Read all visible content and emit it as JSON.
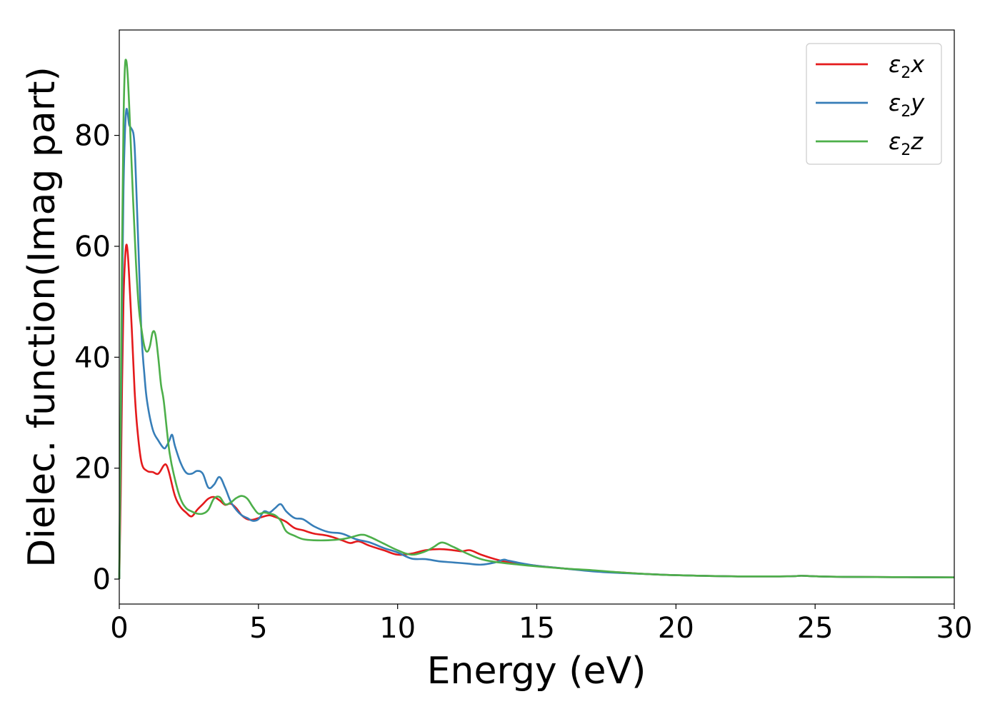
{
  "chart_data": {
    "type": "line",
    "xlabel": "Energy (eV)",
    "ylabel": "Dielec. function(Imag part)",
    "xlim": [
      0,
      30
    ],
    "ylim": [
      -4.5,
      99
    ],
    "xticks": [
      0,
      5,
      10,
      15,
      20,
      25,
      30
    ],
    "yticks": [
      0,
      20,
      40,
      60,
      80
    ],
    "grid": false,
    "legend_position": "top-right",
    "series": [
      {
        "name": "ε2x",
        "legend": {
          "base": "ε",
          "sub": "2",
          "var": "x"
        },
        "color": "#e41a1c",
        "x": [
          0,
          0.05,
          0.1,
          0.15,
          0.2,
          0.25,
          0.3,
          0.35,
          0.45,
          0.55,
          0.65,
          0.8,
          1.0,
          1.2,
          1.4,
          1.6,
          1.7,
          1.8,
          2.0,
          2.2,
          2.4,
          2.6,
          2.8,
          3.0,
          3.2,
          3.4,
          3.6,
          3.8,
          4.0,
          4.2,
          4.4,
          4.6,
          4.8,
          5.0,
          5.2,
          5.4,
          5.6,
          5.8,
          6.0,
          6.3,
          6.6,
          7.0,
          7.5,
          8.0,
          8.3,
          8.6,
          9.0,
          9.5,
          10.0,
          10.5,
          11.0,
          11.5,
          12.0,
          12.3,
          12.6,
          13.0,
          13.5,
          14.0,
          15.0,
          16.0,
          17.0,
          18.0,
          19.0,
          20.0,
          22.0,
          24.0,
          24.5,
          25.0,
          26.0,
          28.0,
          30.0
        ],
        "y": [
          0,
          15,
          35,
          50,
          57,
          60.2,
          59,
          55,
          45,
          34,
          27,
          21,
          19.5,
          19.3,
          19,
          20.5,
          20.5,
          19,
          15,
          13,
          12,
          11.3,
          12.5,
          13.5,
          14.5,
          14.8,
          14.2,
          13.4,
          13.6,
          12.8,
          11.5,
          10.8,
          10.7,
          11.0,
          11.3,
          11.5,
          11.2,
          10.8,
          10.3,
          9.2,
          8.8,
          8.2,
          7.8,
          7.0,
          6.5,
          6.8,
          6.0,
          5.2,
          4.4,
          4.6,
          5.2,
          5.4,
          5.2,
          5.0,
          5.2,
          4.4,
          3.6,
          3.0,
          2.4,
          1.9,
          1.5,
          1.2,
          0.9,
          0.7,
          0.5,
          0.5,
          0.6,
          0.5,
          0.4,
          0.35,
          0.3
        ]
      },
      {
        "name": "ε2y",
        "legend": {
          "base": "ε",
          "sub": "2",
          "var": "y"
        },
        "color": "#377eb8",
        "x": [
          0,
          0.05,
          0.1,
          0.15,
          0.2,
          0.25,
          0.3,
          0.35,
          0.4,
          0.5,
          0.55,
          0.6,
          0.7,
          0.8,
          0.9,
          1.0,
          1.2,
          1.4,
          1.6,
          1.7,
          1.8,
          1.9,
          2.0,
          2.2,
          2.4,
          2.6,
          2.8,
          3.0,
          3.2,
          3.4,
          3.6,
          3.8,
          4.0,
          4.2,
          4.4,
          4.6,
          4.8,
          5.0,
          5.2,
          5.4,
          5.6,
          5.8,
          6.0,
          6.3,
          6.6,
          7.0,
          7.5,
          8.0,
          8.5,
          9.0,
          9.5,
          10.0,
          10.5,
          11.0,
          11.5,
          12.0,
          12.5,
          13.0,
          13.5,
          13.8,
          14.0,
          14.5,
          15.0,
          16.0,
          17.0,
          18.0,
          19.0,
          20.0,
          22.0,
          24.0,
          24.5,
          25.0,
          26.0,
          28.0,
          30.0
        ],
        "y": [
          0,
          25,
          50,
          70,
          80,
          84.5,
          84,
          82,
          81.5,
          80.5,
          78,
          72,
          58,
          44,
          37,
          32,
          27,
          25,
          23.6,
          24,
          25,
          26,
          24,
          21,
          19.2,
          19,
          19.5,
          19,
          16.5,
          17,
          18.4,
          16.5,
          14,
          12.5,
          11.5,
          11,
          10.5,
          10.8,
          12.2,
          12,
          12.8,
          13.5,
          12.2,
          11,
          10.8,
          9.5,
          8.5,
          8.2,
          7.2,
          6.6,
          5.6,
          4.8,
          3.7,
          3.6,
          3.2,
          3.0,
          2.8,
          2.6,
          3.0,
          3.5,
          3.3,
          2.8,
          2.4,
          1.9,
          1.4,
          1.1,
          0.9,
          0.7,
          0.5,
          0.5,
          0.6,
          0.5,
          0.4,
          0.35,
          0.3
        ]
      },
      {
        "name": "ε2z",
        "legend": {
          "base": "ε",
          "sub": "2",
          "var": "z"
        },
        "color": "#4daf4a",
        "x": [
          0,
          0.05,
          0.1,
          0.15,
          0.2,
          0.25,
          0.3,
          0.35,
          0.4,
          0.5,
          0.6,
          0.7,
          0.8,
          0.9,
          1.0,
          1.1,
          1.2,
          1.3,
          1.4,
          1.5,
          1.6,
          1.8,
          2.0,
          2.2,
          2.4,
          2.6,
          2.8,
          3.0,
          3.2,
          3.4,
          3.6,
          3.8,
          4.0,
          4.2,
          4.4,
          4.6,
          4.8,
          5.0,
          5.2,
          5.4,
          5.6,
          5.8,
          6.0,
          6.3,
          6.6,
          7.0,
          7.5,
          8.0,
          8.3,
          8.7,
          9.0,
          9.5,
          10.0,
          10.5,
          11.0,
          11.3,
          11.6,
          12.0,
          12.5,
          13.0,
          13.5,
          14.0,
          15.0,
          16.0,
          17.0,
          18.0,
          19.0,
          20.0,
          22.0,
          24.0,
          24.5,
          25.0,
          26.0,
          28.0,
          30.0
        ],
        "y": [
          0,
          30,
          60,
          82,
          92,
          93.5,
          91,
          86,
          80,
          68,
          57,
          49,
          45,
          42,
          41,
          42,
          44.5,
          44,
          40,
          35,
          32,
          23,
          18,
          14.5,
          12.8,
          12.2,
          11.8,
          11.8,
          12.5,
          14.5,
          14.8,
          13.5,
          13.8,
          14.6,
          15,
          14.5,
          13,
          11.8,
          12,
          11.8,
          11.5,
          10.5,
          8.6,
          7.8,
          7.2,
          7.0,
          7.0,
          7.2,
          7.5,
          8.0,
          7.6,
          6.4,
          5.2,
          4.4,
          5.0,
          5.8,
          6.6,
          5.8,
          4.6,
          3.6,
          3.1,
          2.8,
          2.3,
          1.9,
          1.6,
          1.2,
          0.9,
          0.7,
          0.5,
          0.5,
          0.6,
          0.5,
          0.4,
          0.35,
          0.3
        ]
      }
    ]
  }
}
